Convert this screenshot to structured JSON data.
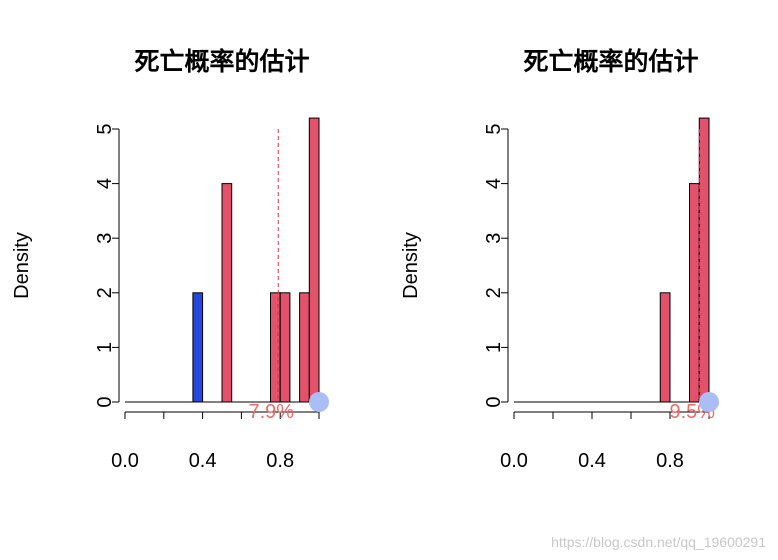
{
  "watermark": "https://blog.csdn.net/qq_19600291",
  "colors": {
    "bar_default": "#e2526a",
    "bar_highlight": "#2447dc",
    "dashed_line": "#d23a4a",
    "pct_text": "#ec6b6b",
    "dot": "#aabdf5"
  },
  "chart_data": [
    {
      "type": "bar",
      "title": "死亡概率的估计",
      "xlabel": "",
      "ylabel": "Density",
      "xlim": [
        0,
        1
      ],
      "ylim": [
        0,
        5
      ],
      "xticks": [
        0,
        0.2,
        0.4,
        0.6,
        0.8,
        1.0
      ],
      "xtick_labels": [
        "0.0",
        "",
        "0.4",
        "",
        "0.8",
        ""
      ],
      "yticks": [
        0,
        1,
        2,
        3,
        4,
        5
      ],
      "ytick_labels": [
        "0",
        "1",
        "2",
        "3",
        "4",
        "5"
      ],
      "bin_width": 0.05,
      "bins": [
        {
          "x0": 0.35,
          "x1": 0.4,
          "density": 2,
          "color": "#2447dc"
        },
        {
          "x0": 0.5,
          "x1": 0.55,
          "density": 4,
          "color": "#e2526a"
        },
        {
          "x0": 0.75,
          "x1": 0.8,
          "density": 2,
          "color": "#e2526a"
        },
        {
          "x0": 0.8,
          "x1": 0.85,
          "density": 2,
          "color": "#e2526a"
        },
        {
          "x0": 0.9,
          "x1": 0.95,
          "density": 2,
          "color": "#e2526a"
        },
        {
          "x0": 0.95,
          "x1": 1.0,
          "density": 5.2,
          "color": "#e2526a"
        }
      ],
      "vline": 0.79,
      "annotation": "7.9%",
      "marker_x": 1.0
    },
    {
      "type": "bar",
      "title": "死亡概率的估计",
      "xlabel": "",
      "ylabel": "Density",
      "xlim": [
        0,
        1
      ],
      "ylim": [
        0,
        5
      ],
      "xticks": [
        0,
        0.2,
        0.4,
        0.6,
        0.8,
        1.0
      ],
      "xtick_labels": [
        "0.0",
        "",
        "0.4",
        "",
        "0.8",
        ""
      ],
      "yticks": [
        0,
        1,
        2,
        3,
        4,
        5
      ],
      "ytick_labels": [
        "0",
        "1",
        "2",
        "3",
        "4",
        "5"
      ],
      "bin_width": 0.05,
      "bins": [
        {
          "x0": 0.75,
          "x1": 0.8,
          "density": 2,
          "color": "#e2526a"
        },
        {
          "x0": 0.9,
          "x1": 0.95,
          "density": 4,
          "color": "#e2526a"
        },
        {
          "x0": 0.95,
          "x1": 1.0,
          "density": 5.2,
          "color": "#e2526a"
        }
      ],
      "vline": 0.95,
      "annotation": "9.5%",
      "marker_x": 1.0
    }
  ]
}
